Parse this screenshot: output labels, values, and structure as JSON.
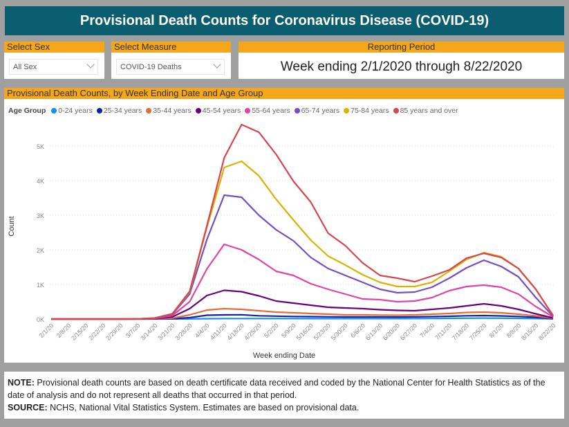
{
  "header": {
    "title": "Provisional Death Counts for Coronavirus Disease (COVID-19)"
  },
  "slicers": {
    "sex": {
      "label": "Select Sex",
      "value": "All Sex"
    },
    "measure": {
      "label": "Select Measure",
      "value": "COVID-19 Deaths"
    },
    "period": {
      "label": "Reporting Period",
      "value": "Week ending 2/1/2020 through 8/22/2020"
    }
  },
  "chart_panel": {
    "title": "Provisional Death Counts, by Week Ending Date and Age Group"
  },
  "note": {
    "note_label": "NOTE:",
    "note_text": " Provisional death counts are based on death certificate data received and coded by the National Center for Health Statistics as of the date of analysis and do not represent all deaths that occurred in that period.",
    "source_label": "SOURCE:",
    "source_text": " NCHS, National Vital Statistics System. Estimates are based on provisional data."
  },
  "chart_data": {
    "type": "line",
    "title": "Provisional Death Counts, by Week Ending Date and Age Group",
    "xlabel": "Week ending Date",
    "ylabel": "Count",
    "ylim": [
      0,
      5600
    ],
    "yticks": [
      0,
      1000,
      2000,
      3000,
      4000,
      5000
    ],
    "ytick_labels": [
      "0K",
      "1K",
      "2K",
      "3K",
      "4K",
      "5K"
    ],
    "grid": true,
    "legend_title": "Age Group",
    "legend_position": "top-left",
    "x": [
      "2/1/20",
      "2/8/20",
      "2/15/20",
      "2/22/20",
      "2/29/20",
      "3/7/20",
      "3/14/20",
      "3/21/20",
      "3/28/20",
      "4/4/20",
      "4/11/20",
      "4/18/20",
      "4/25/20",
      "5/2/20",
      "5/9/20",
      "5/16/20",
      "5/23/20",
      "5/30/20",
      "6/6/20",
      "6/13/20",
      "6/20/20",
      "6/27/20",
      "7/4/20",
      "7/11/20",
      "7/18/20",
      "7/25/20",
      "8/1/20",
      "8/8/20",
      "8/15/20",
      "8/22/20"
    ],
    "series": [
      {
        "name": "0-24 years",
        "color": "#118dff",
        "values": [
          0,
          0,
          0,
          0,
          0,
          0,
          0,
          2,
          5,
          10,
          15,
          15,
          15,
          15,
          14,
          12,
          12,
          12,
          12,
          12,
          12,
          14,
          16,
          20,
          24,
          26,
          24,
          20,
          14,
          4
        ]
      },
      {
        "name": "25-34 years",
        "color": "#12239e",
        "values": [
          0,
          0,
          0,
          0,
          0,
          0,
          2,
          10,
          40,
          110,
          120,
          125,
          95,
          85,
          75,
          70,
          65,
          60,
          60,
          60,
          58,
          62,
          70,
          80,
          95,
          100,
          90,
          75,
          50,
          12
        ]
      },
      {
        "name": "35-44 years",
        "color": "#e66c37",
        "values": [
          0,
          0,
          0,
          0,
          0,
          0,
          4,
          25,
          120,
          260,
          300,
          280,
          240,
          200,
          180,
          160,
          140,
          120,
          120,
          115,
          110,
          120,
          140,
          160,
          190,
          200,
          180,
          140,
          90,
          20
        ]
      },
      {
        "name": "45-54 years",
        "color": "#6b007b",
        "values": [
          0,
          0,
          0,
          0,
          0,
          2,
          10,
          60,
          300,
          680,
          830,
          790,
          670,
          520,
          460,
          400,
          340,
          320,
          300,
          270,
          250,
          240,
          280,
          320,
          380,
          440,
          380,
          280,
          150,
          30
        ]
      },
      {
        "name": "55-64 years",
        "color": "#e044a7",
        "values": [
          0,
          0,
          0,
          0,
          0,
          3,
          20,
          100,
          500,
          1450,
          2160,
          2000,
          1720,
          1380,
          1260,
          1020,
          860,
          720,
          580,
          560,
          500,
          520,
          620,
          820,
          940,
          980,
          920,
          720,
          360,
          60
        ]
      },
      {
        "name": "65-74 years",
        "color": "#744ec2",
        "values": [
          0,
          0,
          0,
          0,
          0,
          4,
          25,
          130,
          720,
          2300,
          3580,
          3520,
          3000,
          2580,
          2260,
          1780,
          1460,
          1260,
          1060,
          860,
          760,
          780,
          920,
          1180,
          1480,
          1700,
          1520,
          1220,
          620,
          80
        ]
      },
      {
        "name": "75-84 years",
        "color": "#d9b300",
        "values": [
          0,
          0,
          0,
          0,
          0,
          5,
          30,
          150,
          780,
          2650,
          4380,
          4560,
          4140,
          3460,
          2860,
          2280,
          1820,
          1560,
          1280,
          1060,
          940,
          940,
          1060,
          1380,
          1720,
          1920,
          1800,
          1460,
          860,
          100
        ]
      },
      {
        "name": "85 years and over",
        "color": "#d64550",
        "values": [
          0,
          0,
          0,
          0,
          0,
          5,
          30,
          150,
          800,
          2700,
          4660,
          5620,
          5400,
          4760,
          3980,
          3380,
          2480,
          2120,
          1620,
          1260,
          1180,
          1080,
          1240,
          1420,
          1760,
          1900,
          1780,
          1460,
          860,
          100
        ]
      }
    ]
  }
}
